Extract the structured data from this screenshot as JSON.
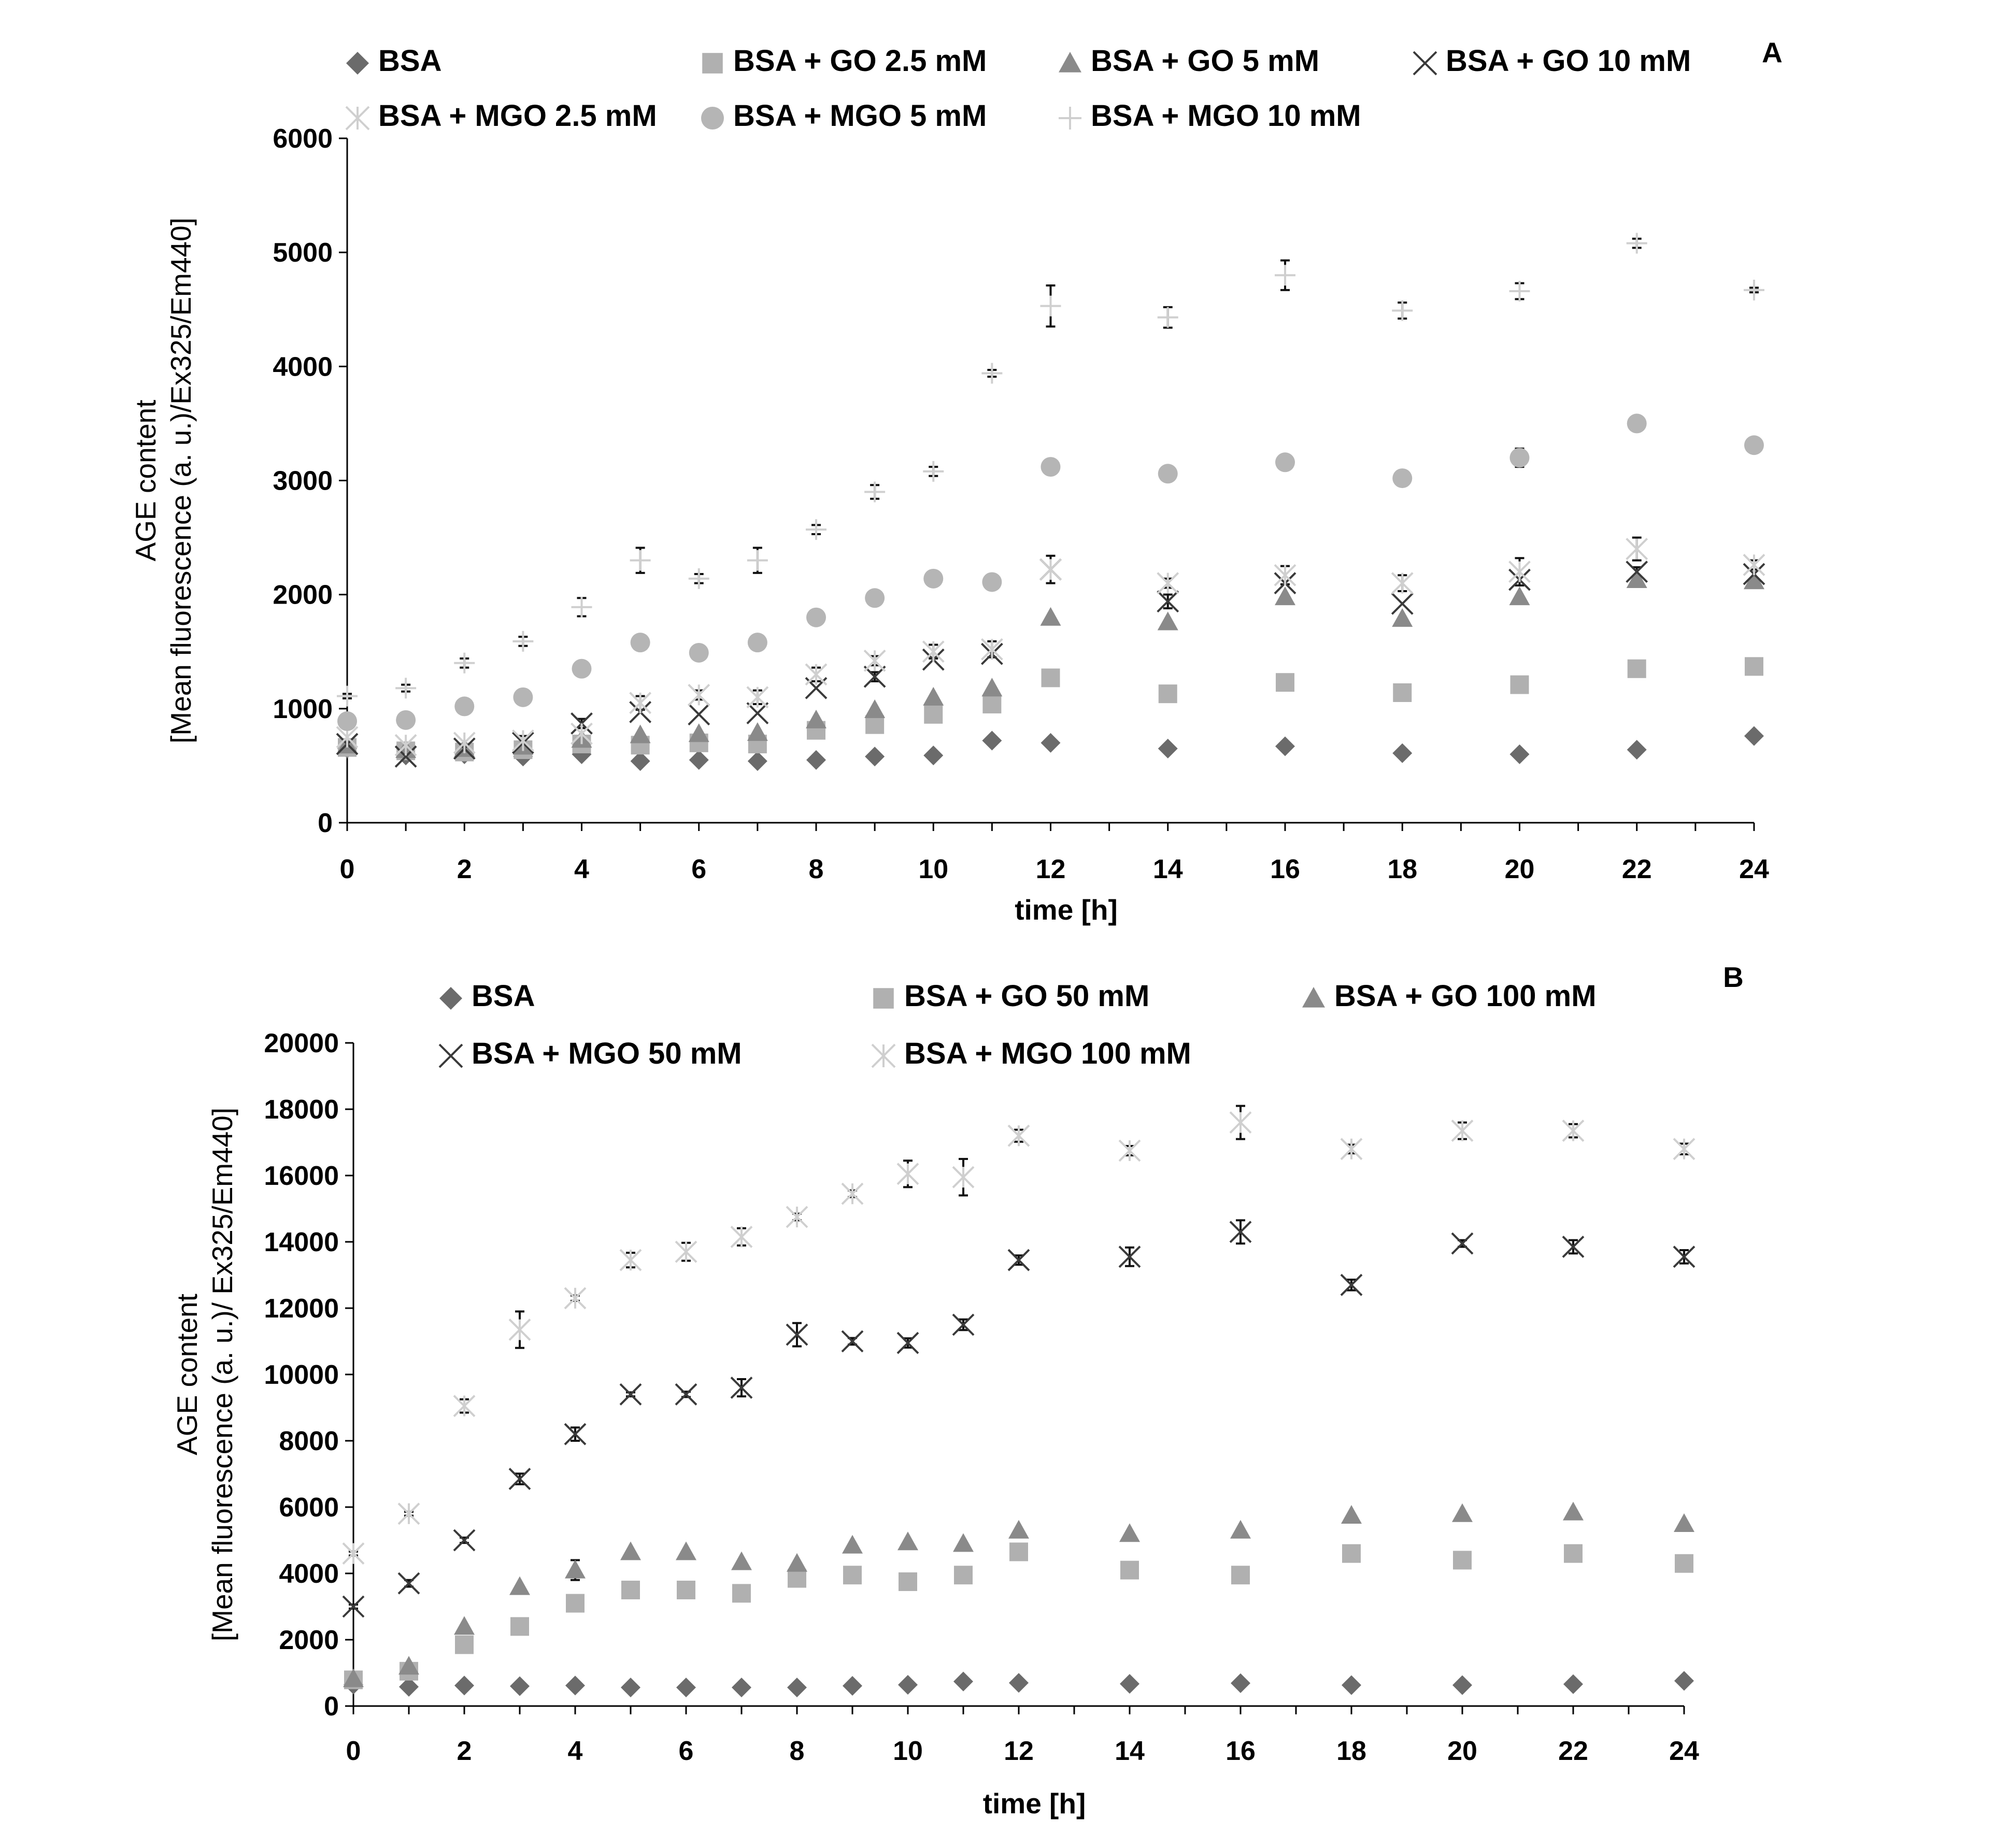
{
  "colors": {
    "BSA": "#6b6b6b",
    "GO_low": "#b0b0b0",
    "GO_high": "#8a8a8a",
    "MGO_dark": "#3a3a3a",
    "MGO_light": "#cfcfcf",
    "MGO_mid": "#b5b5b5",
    "errorbar": "#111111"
  },
  "chart_data": [
    {
      "type": "scatter",
      "panel": "A",
      "xlabel": "time [h]",
      "ylabel_line1": "AGE  content",
      "ylabel_line2": "[Mean fluorescence (a. u.)/Ex325/Em440]",
      "xlim": [
        0,
        24
      ],
      "ylim": [
        0,
        6000
      ],
      "xticks": [
        "0",
        "2",
        "4",
        "6",
        "8",
        "10",
        "12",
        "14",
        "16",
        "18",
        "20",
        "22",
        "24"
      ],
      "yticks": [
        "0",
        "1000",
        "2000",
        "3000",
        "4000",
        "5000",
        "6000"
      ],
      "grid": false,
      "legend_position": "top",
      "x": [
        0,
        1,
        2,
        3,
        4,
        5,
        6,
        7,
        8,
        9,
        10,
        11,
        12,
        14,
        16,
        18,
        20,
        22,
        24
      ],
      "series": [
        {
          "name": "BSA",
          "marker": "diamond",
          "values": [
            650,
            590,
            600,
            580,
            600,
            540,
            550,
            540,
            550,
            580,
            590,
            720,
            700,
            650,
            670,
            610,
            600,
            640,
            760
          ]
        },
        {
          "name": "BSA + GO 2.5 mM",
          "marker": "square",
          "values": [
            660,
            630,
            620,
            640,
            690,
            680,
            700,
            690,
            810,
            860,
            950,
            1040,
            1270,
            1130,
            1230,
            1140,
            1210,
            1350,
            1370
          ]
        },
        {
          "name": "BSA + GO 5 mM",
          "marker": "triangle",
          "values": [
            680,
            640,
            650,
            670,
            730,
            770,
            780,
            790,
            900,
            990,
            1100,
            1180,
            1800,
            1760,
            1980,
            1790,
            1980,
            2130,
            2120
          ]
        },
        {
          "name": "BSA + GO 10 mM",
          "marker": "x",
          "values": [
            690,
            580,
            650,
            700,
            870,
            970,
            950,
            960,
            1180,
            1280,
            1430,
            1480,
            2220,
            1940,
            2100,
            1920,
            2130,
            2200,
            2180
          ]
        },
        {
          "name": "BSA + MGO 2.5 mM",
          "marker": "star",
          "values": [
            750,
            680,
            700,
            720,
            780,
            1050,
            1120,
            1100,
            1300,
            1420,
            1500,
            1520,
            2220,
            2100,
            2170,
            2100,
            2200,
            2400,
            2260
          ]
        },
        {
          "name": "BSA + MGO 5 mM",
          "marker": "circle",
          "values": [
            890,
            900,
            1020,
            1100,
            1350,
            1580,
            1490,
            1580,
            1800,
            1970,
            2140,
            2110,
            3120,
            3060,
            3160,
            3020,
            3200,
            3500,
            3310
          ]
        },
        {
          "name": "BSA + MGO 10 mM",
          "marker": "plus",
          "values": [
            1110,
            1180,
            1400,
            1590,
            1890,
            2300,
            2140,
            2300,
            2570,
            2900,
            3080,
            3940,
            4530,
            4430,
            4800,
            4490,
            4660,
            5080,
            4670
          ]
        }
      ],
      "errors": {
        "BSA + MGO 10 mM": [
          20,
          30,
          40,
          40,
          80,
          110,
          40,
          110,
          40,
          60,
          40,
          30,
          180,
          90,
          130,
          70,
          70,
          40,
          20
        ],
        "BSA + MGO 5 mM": [
          0,
          0,
          0,
          0,
          0,
          0,
          0,
          0,
          0,
          0,
          0,
          0,
          40,
          0,
          0,
          0,
          80,
          0,
          0
        ],
        "BSA + MGO 2.5 mM": [
          0,
          0,
          0,
          40,
          50,
          60,
          40,
          60,
          60,
          40,
          60,
          70,
          120,
          40,
          80,
          70,
          120,
          100,
          40
        ],
        "BSA + GO 10 mM": [
          0,
          0,
          0,
          0,
          40,
          0,
          0,
          0,
          0,
          40,
          0,
          0,
          0,
          60,
          0,
          0,
          0,
          40,
          0
        ]
      }
    },
    {
      "type": "scatter",
      "panel": "B",
      "xlabel": "time [h]",
      "ylabel_line1": "AGE content",
      "ylabel_line2": "[Mean fluorescence (a. u.)/ Ex325/Em440]",
      "xlim": [
        0,
        24
      ],
      "ylim": [
        0,
        20000
      ],
      "xticks": [
        "0",
        "2",
        "4",
        "6",
        "8",
        "10",
        "12",
        "14",
        "16",
        "18",
        "20",
        "22",
        "24"
      ],
      "yticks": [
        "0",
        "2000",
        "4000",
        "6000",
        "8000",
        "10000",
        "12000",
        "14000",
        "16000",
        "18000",
        "20000"
      ],
      "grid": false,
      "legend_position": "top",
      "x": [
        0,
        1,
        2,
        3,
        4,
        5,
        6,
        7,
        8,
        9,
        10,
        11,
        12,
        14,
        16,
        18,
        20,
        22,
        24
      ],
      "series": [
        {
          "name": "BSA",
          "marker": "diamond",
          "values": [
            650,
            580,
            620,
            600,
            620,
            560,
            560,
            560,
            560,
            610,
            640,
            740,
            700,
            670,
            690,
            630,
            630,
            660,
            760
          ]
        },
        {
          "name": "BSA + GO 50 mM",
          "marker": "square",
          "values": [
            790,
            1050,
            1850,
            2400,
            3100,
            3500,
            3500,
            3400,
            3850,
            3950,
            3750,
            3950,
            4650,
            4100,
            3950,
            4600,
            4400,
            4600,
            4300
          ]
        },
        {
          "name": "BSA + GO 100 mM",
          "marker": "triangle",
          "values": [
            820,
            1200,
            2400,
            3600,
            4100,
            4650,
            4650,
            4350,
            4300,
            4850,
            4950,
            4900,
            5300,
            5200,
            5300,
            5750,
            5800,
            5850,
            5500
          ]
        },
        {
          "name": "BSA + MGO 50 mM",
          "marker": "x",
          "values": [
            3000,
            3700,
            5000,
            6850,
            8200,
            9400,
            9400,
            9600,
            11200,
            11000,
            10950,
            11500,
            13450,
            13550,
            14300,
            12700,
            13950,
            13850,
            13550
          ]
        },
        {
          "name": "BSA + MGO 100 mM",
          "marker": "star",
          "values": [
            4600,
            5800,
            9050,
            11350,
            12300,
            13450,
            13700,
            14150,
            14750,
            15450,
            16050,
            15950,
            17200,
            16750,
            17600,
            16800,
            17350,
            17350,
            16800
          ]
        }
      ],
      "errors": {
        "BSA + MGO 100 mM": [
          60,
          60,
          200,
          550,
          80,
          220,
          270,
          260,
          100,
          100,
          400,
          550,
          180,
          140,
          500,
          130,
          250,
          200,
          160
        ],
        "BSA + MGO 50 mM": [
          60,
          100,
          80,
          160,
          200,
          60,
          80,
          260,
          350,
          100,
          140,
          160,
          140,
          280,
          350,
          160,
          100,
          200,
          200
        ],
        "BSA + GO 100 mM": [
          0,
          0,
          0,
          0,
          300,
          0,
          0,
          0,
          0,
          0,
          0,
          0,
          0,
          0,
          0,
          0,
          0,
          0,
          0
        ]
      }
    }
  ]
}
